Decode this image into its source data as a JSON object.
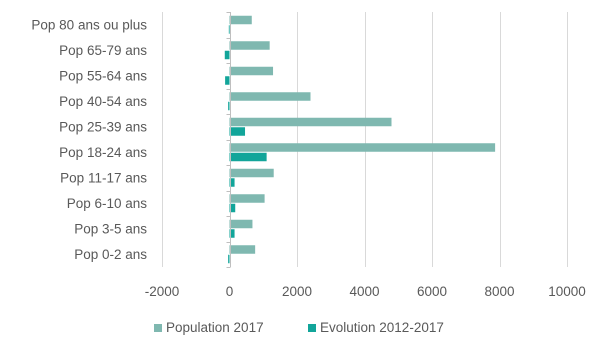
{
  "chart_data": {
    "type": "bar",
    "orientation": "horizontal",
    "categories": [
      "Pop 80 ans ou plus",
      "Pop 65-79 ans",
      "Pop 55-64 ans",
      "Pop 40-54 ans",
      "Pop 25-39 ans",
      "Pop 18-24 ans",
      "Pop 11-17 ans",
      "Pop 6-10 ans",
      "Pop 3-5 ans",
      "Pop 0-2 ans"
    ],
    "series": [
      {
        "name": "Population 2017",
        "color": "#7fb8b0",
        "values": [
          660,
          1190,
          1290,
          2400,
          4800,
          7870,
          1310,
          1040,
          680,
          760
        ]
      },
      {
        "name": "Evolution 2012-2017",
        "color": "#12a59a",
        "values": [
          -20,
          -140,
          -130,
          -40,
          460,
          1100,
          150,
          170,
          150,
          -40
        ]
      }
    ],
    "xlim": [
      -2000,
      10000
    ],
    "xticks": [
      -2000,
      0,
      2000,
      4000,
      6000,
      8000,
      10000
    ],
    "grid": true,
    "legend": "bottom",
    "title": "",
    "xlabel": "",
    "ylabel": ""
  }
}
